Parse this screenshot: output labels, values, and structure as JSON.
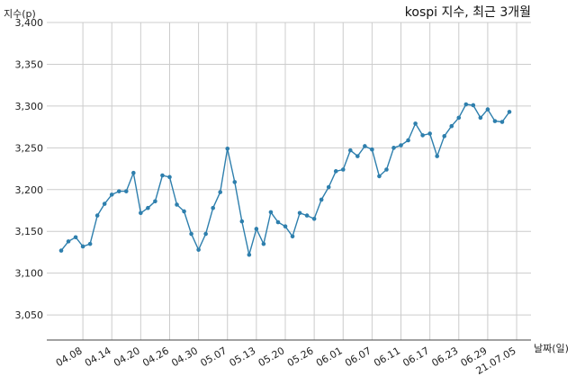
{
  "chart_data": {
    "type": "line",
    "title": "kospi 지수, 최근 3개월",
    "xlabel": "날짜(일)",
    "ylabel": "지수(p)",
    "ylim": [
      3020,
      3400
    ],
    "grid": true,
    "yticks": [
      3050,
      3100,
      3150,
      3200,
      3250,
      3300,
      3350,
      3400
    ],
    "ytick_labels": [
      "3,050",
      "3,100",
      "3,150",
      "3,200",
      "3,250",
      "3,300",
      "3,350",
      "3,400"
    ],
    "xtick_labels": [
      "04.08",
      "04.14",
      "04.20",
      "04.26",
      "04.30",
      "05.07",
      "05.13",
      "05.20",
      "05.26",
      "06.01",
      "06.07",
      "06.11",
      "06.17",
      "06.23",
      "06.29",
      "21.07.05"
    ],
    "xtick_index": [
      3,
      7,
      11,
      15,
      19,
      23,
      27,
      31,
      35,
      39,
      43,
      47,
      51,
      55,
      59,
      63
    ],
    "color": "#2e7fad",
    "values": [
      3127,
      3138,
      3143,
      3132,
      3135,
      3169,
      3183,
      3194,
      3198,
      3198,
      3220,
      3172,
      3178,
      3186,
      3217,
      3215,
      3182,
      3174,
      3147,
      3128,
      3147,
      3178,
      3197,
      3249,
      3209,
      3162,
      3122,
      3153,
      3135,
      3173,
      3161,
      3156,
      3144,
      3172,
      3169,
      3165,
      3188,
      3203,
      3222,
      3224,
      3247,
      3240,
      3252,
      3248,
      3216,
      3224,
      3250,
      3253,
      3259,
      3279,
      3265,
      3267,
      3240,
      3264,
      3276,
      3286,
      3302,
      3301,
      3286,
      3296,
      3282,
      3281,
      3293
    ]
  }
}
